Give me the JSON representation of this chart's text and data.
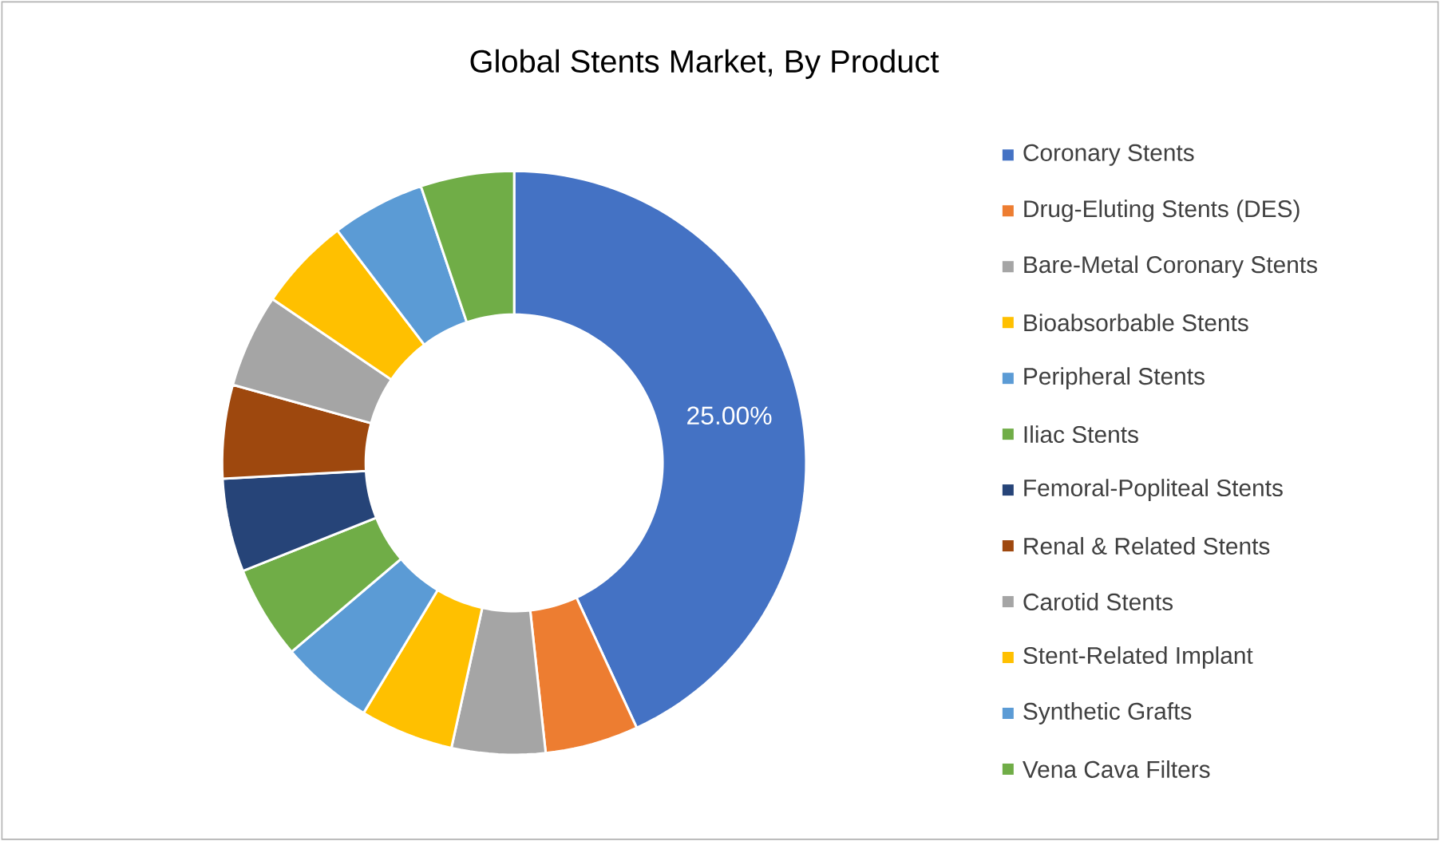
{
  "chart_data": {
    "type": "donut",
    "title": "Global Stents Market, By Product",
    "categories": [
      "Coronary Stents",
      "Drug-Eluting Stents (DES)",
      "Bare-Metal Coronary Stents",
      "Bioabsorbable Stents",
      "Peripheral Stents",
      "Iliac Stents",
      "Femoral-Popliteal Stents",
      "Renal & Related Stents",
      "Carotid Stents",
      "Stent-Related Implant",
      "Synthetic Grafts",
      "Vena Cava Filters"
    ],
    "values": [
      25,
      3,
      3,
      3,
      3,
      3,
      3,
      3,
      3,
      3,
      3,
      3
    ],
    "value_labels": [
      "25.00%",
      null,
      null,
      null,
      null,
      null,
      null,
      null,
      null,
      null,
      null,
      null
    ],
    "colors": [
      "#4472c4",
      "#ed7d31",
      "#a5a5a5",
      "#ffc000",
      "#5b9bd5",
      "#70ad47",
      "#264478",
      "#9e480e",
      "#a5a5a5",
      "#ffc000",
      "#5b9bd5",
      "#70ad47"
    ],
    "legend": "right"
  }
}
